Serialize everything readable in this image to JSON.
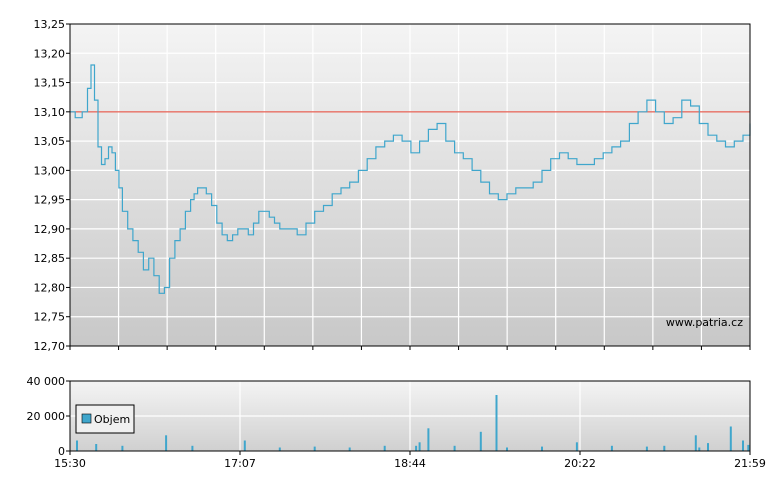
{
  "chart_data": [
    {
      "type": "line",
      "x_start": "15:30",
      "x_end": "21:59",
      "xticks": [
        "15:30",
        "17:07",
        "18:44",
        "20:22",
        "21:59"
      ],
      "yticks": [
        "12,70",
        "12,75",
        "12,80",
        "12,85",
        "12,90",
        "12,95",
        "13,00",
        "13,05",
        "13,10",
        "13,15",
        "13,20",
        "13,25"
      ],
      "ylim": [
        12.7,
        13.25
      ],
      "grid": true,
      "reference_line": 13.1,
      "watermark": "www.patria.cz",
      "colors": {
        "line": "#3fa6cc",
        "reference": "#e03a2a",
        "grid": "#ffffff",
        "bg_top": "#f4f4f4",
        "bg_bottom": "#c9c9c9"
      },
      "series": [
        {
          "x": [
            "15:30",
            "15:33",
            "15:37",
            "15:40",
            "15:42",
            "15:44",
            "15:46",
            "15:48",
            "15:50",
            "15:52",
            "15:54",
            "15:56",
            "15:58",
            "16:00",
            "16:03",
            "16:06",
            "16:09",
            "16:12",
            "16:15",
            "16:18",
            "16:21",
            "16:24",
            "16:27",
            "16:30",
            "16:33",
            "16:36",
            "16:39",
            "16:41",
            "16:43",
            "16:45",
            "16:48",
            "16:51",
            "16:54",
            "16:57",
            "17:00",
            "17:03",
            "17:06",
            "17:09",
            "17:12",
            "17:15",
            "17:18",
            "17:21",
            "17:24",
            "17:27",
            "17:30",
            "17:35",
            "17:40",
            "17:45",
            "17:50",
            "17:55",
            "18:00",
            "18:05",
            "18:10",
            "18:15",
            "18:20",
            "18:25",
            "18:30",
            "18:35",
            "18:40",
            "18:45",
            "18:50",
            "18:55",
            "19:00",
            "19:05",
            "19:10",
            "19:15",
            "19:20",
            "19:25",
            "19:30",
            "19:35",
            "19:40",
            "19:45",
            "19:50",
            "19:55",
            "20:00",
            "20:05",
            "20:10",
            "20:15",
            "20:20",
            "20:25",
            "20:30",
            "20:35",
            "20:40",
            "20:45",
            "20:50",
            "20:55",
            "21:00",
            "21:05",
            "21:10",
            "21:15",
            "21:20",
            "21:25",
            "21:30",
            "21:35",
            "21:40",
            "21:45",
            "21:50",
            "21:55",
            "21:59"
          ],
          "values": [
            13.1,
            13.09,
            13.1,
            13.14,
            13.18,
            13.12,
            13.04,
            13.01,
            13.02,
            13.04,
            13.03,
            13.0,
            12.97,
            12.93,
            12.9,
            12.88,
            12.86,
            12.83,
            12.85,
            12.82,
            12.79,
            12.8,
            12.85,
            12.88,
            12.9,
            12.93,
            12.95,
            12.96,
            12.97,
            12.97,
            12.96,
            12.94,
            12.91,
            12.89,
            12.88,
            12.89,
            12.9,
            12.9,
            12.89,
            12.91,
            12.93,
            12.93,
            12.92,
            12.91,
            12.9,
            12.9,
            12.89,
            12.91,
            12.93,
            12.94,
            12.96,
            12.97,
            12.98,
            13.0,
            13.02,
            13.04,
            13.05,
            13.06,
            13.05,
            13.03,
            13.05,
            13.07,
            13.08,
            13.05,
            13.03,
            13.02,
            13.0,
            12.98,
            12.96,
            12.95,
            12.96,
            12.97,
            12.97,
            12.98,
            13.0,
            13.02,
            13.03,
            13.02,
            13.01,
            13.01,
            13.02,
            13.03,
            13.04,
            13.05,
            13.08,
            13.1,
            13.12,
            13.1,
            13.08,
            13.09,
            13.12,
            13.11,
            13.08,
            13.06,
            13.05,
            13.04,
            13.05,
            13.06,
            13.08
          ]
        }
      ]
    },
    {
      "type": "bar",
      "yticks": [
        "0",
        "20 000",
        "40 000"
      ],
      "ylim": [
        0,
        40000
      ],
      "xticks": [
        "15:30",
        "17:07",
        "18:44",
        "20:22",
        "21:59"
      ],
      "legend": "Objem",
      "legend_position": "left",
      "colors": {
        "bar": "#3fa6cc"
      },
      "series": [
        {
          "name": "Objem",
          "x": [
            "15:34",
            "15:45",
            "16:00",
            "16:25",
            "16:40",
            "17:10",
            "17:30",
            "17:50",
            "18:10",
            "18:30",
            "18:48",
            "18:50",
            "18:55",
            "19:10",
            "19:25",
            "19:34",
            "19:40",
            "20:00",
            "20:20",
            "20:40",
            "21:00",
            "21:10",
            "21:28",
            "21:30",
            "21:35",
            "21:48",
            "21:55",
            "21:58"
          ],
          "values": [
            6000,
            4000,
            3000,
            9000,
            3000,
            6000,
            2000,
            2500,
            2000,
            3000,
            3000,
            5000,
            13000,
            3000,
            11000,
            32000,
            2000,
            2500,
            5000,
            3000,
            2500,
            3000,
            9000,
            2000,
            4500,
            14000,
            6000,
            3500
          ]
        }
      ]
    }
  ]
}
